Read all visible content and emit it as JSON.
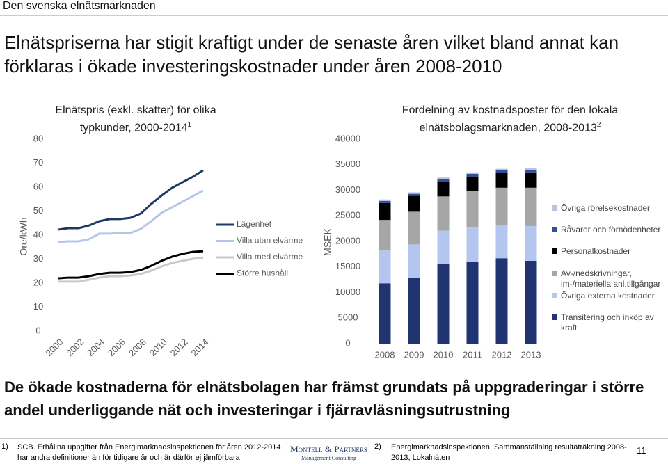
{
  "header": "Den svenska elnätsmarknaden",
  "title": "Elnätspriserna har stigit kraftigt under de senaste åren vilket bland annat kan förklaras i ökade investeringskostnader under åren 2008-2010",
  "chart_data": [
    {
      "type": "line",
      "title": "Elnätspris (exkl. skatter) för olika typkunder, 2000-2014",
      "title_note": "1",
      "y_label": "Öre/kWh",
      "x": [
        2000,
        2001,
        2002,
        2003,
        2004,
        2005,
        2006,
        2007,
        2008,
        2009,
        2010,
        2011,
        2012,
        2013,
        2014
      ],
      "xlim": [
        2000,
        2014
      ],
      "xticks": [
        2000,
        2002,
        2004,
        2006,
        2008,
        2010,
        2012,
        2014
      ],
      "ylim": [
        0,
        80
      ],
      "yticks": [
        0,
        10,
        20,
        30,
        40,
        50,
        60,
        70,
        80
      ],
      "series": [
        {
          "name": "Lägenhet",
          "color": "#1f3864",
          "values": [
            42.3,
            42.9,
            42.9,
            44,
            45.8,
            46.7,
            46.7,
            47.2,
            49,
            53,
            56.5,
            59.7,
            62,
            64.3,
            67
          ]
        },
        {
          "name": "Villa utan elvärme",
          "color": "#b4c7e7",
          "values": [
            37.1,
            37.4,
            37.4,
            38.3,
            40.6,
            40.6,
            40.9,
            40.9,
            42.6,
            45.8,
            49.3,
            51.6,
            53.9,
            56.2,
            58.6
          ]
        },
        {
          "name": "Villa med elvärme",
          "color": "#c9c9c9",
          "values": [
            20.6,
            20.6,
            20.6,
            21.4,
            22.3,
            22.9,
            22.9,
            23.2,
            23.8,
            25.2,
            27,
            28.4,
            29.3,
            30.1,
            30.7
          ]
        },
        {
          "name": "Större hushåll",
          "color": "#000000",
          "values": [
            22,
            22.3,
            22.3,
            22.9,
            23.8,
            24.3,
            24.3,
            24.6,
            25.5,
            27.2,
            29.3,
            31,
            32.2,
            33,
            33.3
          ]
        }
      ]
    },
    {
      "type": "bar",
      "stacked": true,
      "title": "Fördelning av kostnadsposter för den lokala elnätsbolagsmarknaden, 2008-2013",
      "title_note": "2",
      "y_label": "MSEK",
      "categories": [
        "2008",
        "2009",
        "2010",
        "2011",
        "2012",
        "2013"
      ],
      "ylim": [
        0,
        40000
      ],
      "yticks": [
        0,
        5000,
        10000,
        15000,
        20000,
        25000,
        30000,
        35000,
        40000
      ],
      "series": [
        {
          "name": "Transitering och inköp av kraft",
          "color": "#1f3470",
          "values": [
            11800,
            12900,
            15600,
            16000,
            16700,
            16200
          ]
        },
        {
          "name": "Övriga externa kostnader",
          "color": "#b4c6f0",
          "values": [
            6400,
            6500,
            6500,
            6700,
            6500,
            6800
          ]
        },
        {
          "name": "Av-/nedskrivningar, im-/materiella anl.tillgångar",
          "color": "#a6a6a6",
          "values": [
            6000,
            6400,
            6700,
            7100,
            7300,
            7500
          ]
        },
        {
          "name": "Personalkostnader",
          "color": "#000000",
          "values": [
            3300,
            3100,
            2900,
            2900,
            2900,
            3000
          ]
        },
        {
          "name": "Råvaror och förnödenheter",
          "color": "#2f4f9a",
          "values": [
            400,
            400,
            500,
            500,
            500,
            500
          ]
        },
        {
          "name": "Övriga rörelsekostnader",
          "color": "#b7c4dc",
          "values": [
            300,
            300,
            300,
            300,
            300,
            300
          ]
        }
      ]
    }
  ],
  "conclusion": "De ökade kostnaderna för elnätsbolagen har främst grundats på uppgraderingar i större andel underliggande nät och investeringar i fjärravläsningsutrustning",
  "footnotes": [
    {
      "marker": "1)",
      "text": "SCB. Erhållna uppgifter från Energimarknadsinspektionen för åren 2012-2014 har andra definitioner än för tidigare år och är därför ej jämförbara"
    },
    {
      "marker": "2)",
      "text": "Energimarknadsinspektionen. Sammanställning resultaträkning 2008-2013, Lokalnäten"
    }
  ],
  "logo": {
    "name": "Montell & Partners",
    "tagline": "Management Consulting"
  },
  "page_number": "11"
}
